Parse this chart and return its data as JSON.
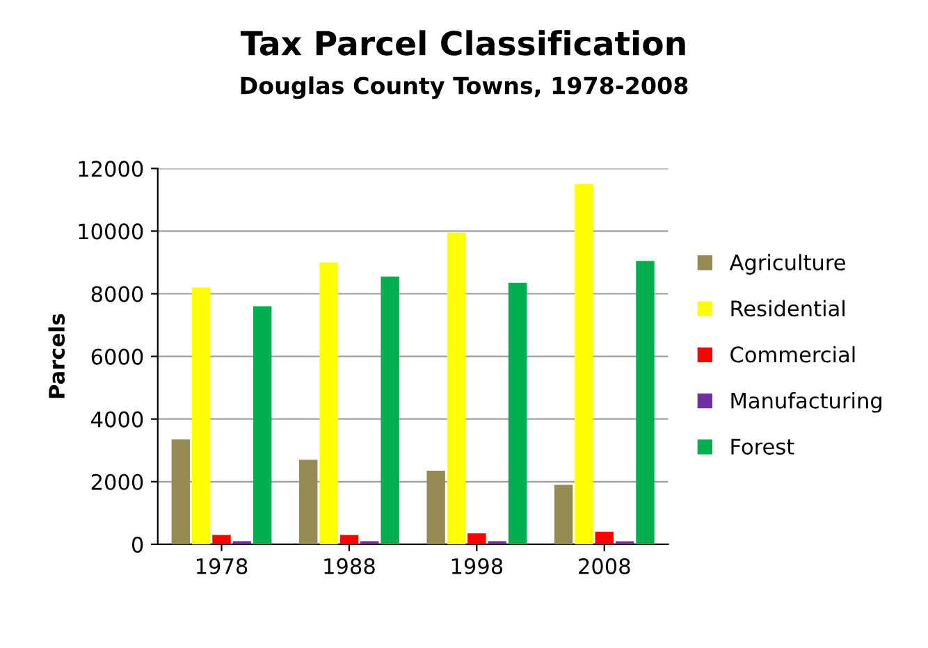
{
  "chart_data": {
    "type": "bar",
    "title": "Tax Parcel Classification",
    "subtitle": "Douglas County Towns, 1978-2008",
    "ylabel": "Parcels",
    "categories": [
      "1978",
      "1988",
      "1998",
      "2008"
    ],
    "series": [
      {
        "name": "Agriculture",
        "color": "#948a54",
        "values": [
          3350,
          2700,
          2350,
          1900
        ]
      },
      {
        "name": "Residential",
        "color": "#ffff00",
        "values": [
          8200,
          9000,
          9950,
          11500
        ]
      },
      {
        "name": "Commercial",
        "color": "#ff0000",
        "values": [
          300,
          300,
          350,
          400
        ]
      },
      {
        "name": "Manufacturing",
        "color": "#7030a0",
        "values": [
          100,
          100,
          100,
          100
        ]
      },
      {
        "name": "Forest",
        "color": "#00b050",
        "values": [
          7600,
          8550,
          8350,
          9050
        ]
      }
    ],
    "ylim": [
      0,
      12000
    ],
    "yticks": [
      0,
      2000,
      4000,
      6000,
      8000,
      10000,
      12000
    ],
    "grid": "y",
    "legend": "right"
  }
}
